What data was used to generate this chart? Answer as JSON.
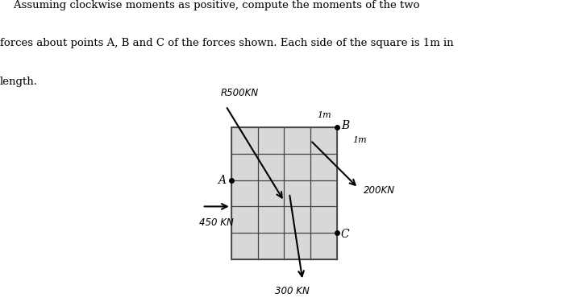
{
  "title_line1": "    Assuming clockwise moments as positive, compute the moments of the two",
  "title_line2": "forces about points A, B and C of the forces shown. Each side of the square is 1m in",
  "title_line3": "length.",
  "grid_rows": 5,
  "grid_cols": 4,
  "background_color": "#d8d8d8",
  "grid_color": "#444444",
  "point_A": [
    0,
    2
  ],
  "point_B": [
    4,
    4
  ],
  "point_C": [
    4,
    1
  ],
  "label_A": "A",
  "label_B": "B",
  "label_C": "C",
  "force_500_label": "R500KN",
  "force_300_label": "300 KN",
  "force_200_label": "200KN",
  "force_450_label": "450 KN",
  "dim_1m_top": "1m",
  "dim_1m_right": "1m",
  "text_color": "#000000"
}
